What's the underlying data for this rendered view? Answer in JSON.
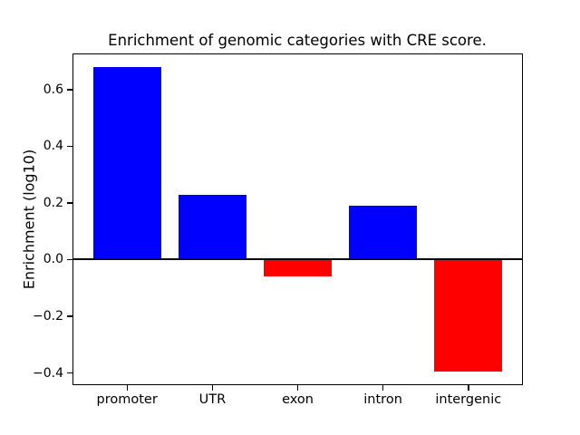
{
  "chart_data": {
    "type": "bar",
    "title": "Enrichment of genomic categories with CRE score.",
    "xlabel": "",
    "ylabel": "Enrichment (log10)",
    "categories": [
      "promoter",
      "UTR",
      "exon",
      "intron",
      "intergenic"
    ],
    "values": [
      0.68,
      0.23,
      -0.06,
      0.19,
      -0.395
    ],
    "positive_color": "#0000ff",
    "negative_color": "#ff0000",
    "axis_color": "#000000",
    "background": "#ffffff",
    "yticks": [
      0.6,
      0.4,
      0.2,
      0.0,
      -0.2,
      -0.4
    ],
    "ytick_labels": [
      "0.6",
      "0.4",
      "0.2",
      "0.0",
      "−0.2",
      "−0.4"
    ],
    "ylim": [
      -0.443,
      0.727
    ],
    "xlim": [
      -0.64,
      4.64
    ],
    "bar_width": 0.8,
    "grid": false,
    "legend": false,
    "zero_line": {
      "y": 0.0,
      "color": "#000000",
      "thickness_px": 2
    }
  }
}
